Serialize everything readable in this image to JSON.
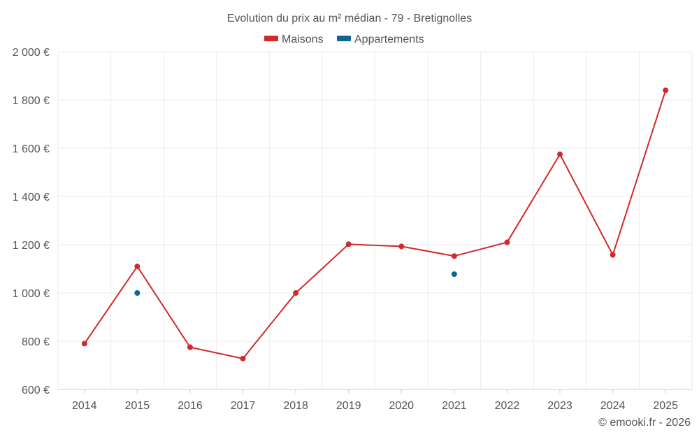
{
  "chart_data": {
    "type": "line",
    "title": "Evolution du prix au m² médian - 79 - Bretignolles",
    "categories": [
      "2014",
      "2015",
      "2016",
      "2017",
      "2018",
      "2019",
      "2020",
      "2021",
      "2022",
      "2023",
      "2024",
      "2025"
    ],
    "series": [
      {
        "name": "Maisons",
        "color": "#d12a2a",
        "line": true,
        "values": [
          790,
          1110,
          775,
          728,
          1000,
          1202,
          1193,
          1153,
          1210,
          1575,
          1158,
          1840
        ]
      },
      {
        "name": "Appartements",
        "color": "#0e6596",
        "line": false,
        "values": [
          null,
          1000,
          null,
          null,
          null,
          null,
          null,
          1078,
          null,
          null,
          null,
          null
        ]
      }
    ],
    "ylim": [
      600,
      2000
    ],
    "yticks": [
      600,
      800,
      1000,
      1200,
      1400,
      1600,
      1800,
      2000
    ],
    "ytick_labels": [
      "600 €",
      "800 €",
      "1 000 €",
      "1 200 €",
      "1 400 €",
      "1 600 €",
      "1 800 €",
      "2 000 €"
    ],
    "grid": true,
    "legend_position": "top-center",
    "credit": "© emooki.fr - 2026"
  }
}
